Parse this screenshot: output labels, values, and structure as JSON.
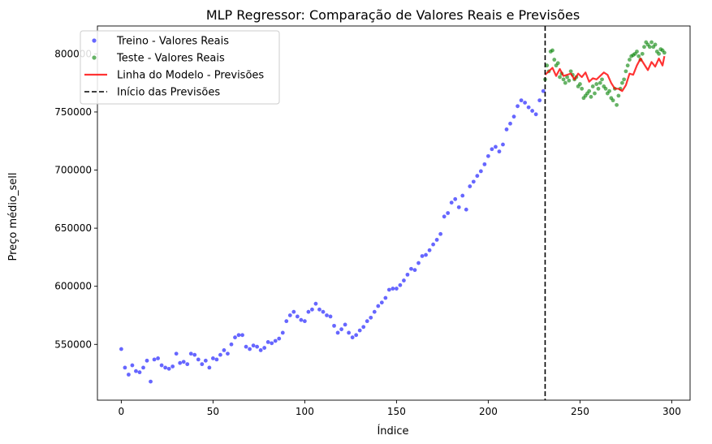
{
  "chart_data": {
    "type": "scatter",
    "title": "MLP Regressor: Comparação de Valores Reais e Previsões",
    "xlabel": "Índice",
    "ylabel": "Preço médio_sell",
    "xlim": [
      -13,
      310
    ],
    "ylim": [
      502000,
      824000
    ],
    "xticks": [
      0,
      50,
      100,
      150,
      200,
      250,
      300
    ],
    "xtick_labels": [
      "0",
      "50",
      "100",
      "150",
      "200",
      "250",
      "300"
    ],
    "yticks": [
      550000,
      600000,
      650000,
      700000,
      750000,
      800000
    ],
    "ytick_labels": [
      "550000",
      "600000",
      "650000",
      "700000",
      "750000",
      "800000"
    ],
    "grid": false,
    "legend_position": "top-left",
    "vline": {
      "x": 231,
      "color": "#000000",
      "style": "dashed"
    },
    "series": [
      {
        "name": "Treino - Valores Reais",
        "kind": "scatter",
        "color": "#0000ff",
        "x": [
          0,
          2,
          4,
          6,
          8,
          10,
          12,
          14,
          16,
          18,
          20,
          22,
          24,
          26,
          28,
          30,
          32,
          34,
          36,
          38,
          40,
          42,
          44,
          46,
          48,
          50,
          52,
          54,
          56,
          58,
          60,
          62,
          64,
          66,
          68,
          70,
          72,
          74,
          76,
          78,
          80,
          82,
          84,
          86,
          88,
          90,
          92,
          94,
          96,
          98,
          100,
          102,
          104,
          106,
          108,
          110,
          112,
          114,
          116,
          118,
          120,
          122,
          124,
          126,
          128,
          130,
          132,
          134,
          136,
          138,
          140,
          142,
          144,
          146,
          148,
          150,
          152,
          154,
          156,
          158,
          160,
          162,
          164,
          166,
          168,
          170,
          172,
          174,
          176,
          178,
          180,
          182,
          184,
          186,
          188,
          190,
          192,
          194,
          196,
          198,
          200,
          202,
          204,
          206,
          208,
          210,
          212,
          214,
          216,
          218,
          220,
          222,
          224,
          226,
          228,
          230
        ],
        "y": [
          546000,
          530000,
          524000,
          532000,
          527000,
          526000,
          530000,
          536000,
          518000,
          537000,
          538000,
          532000,
          530000,
          529000,
          531000,
          542000,
          534000,
          535000,
          533000,
          542000,
          541000,
          537000,
          533000,
          536000,
          530000,
          538000,
          537000,
          541000,
          545000,
          542000,
          550000,
          556000,
          558000,
          558000,
          548000,
          546000,
          549000,
          548000,
          545000,
          547000,
          552000,
          551000,
          553000,
          555000,
          560000,
          570000,
          575000,
          578000,
          574000,
          571000,
          570000,
          578000,
          580000,
          585000,
          580000,
          578000,
          575000,
          574000,
          566000,
          560000,
          563000,
          567000,
          560000,
          556000,
          558000,
          562000,
          565000,
          570000,
          573000,
          578000,
          583000,
          586000,
          590000,
          597000,
          598000,
          598000,
          601000,
          605000,
          610000,
          615000,
          614000,
          620000,
          626000,
          627000,
          631000,
          636000,
          640000,
          645000,
          660000,
          663000,
          672000,
          675000,
          668000,
          678000,
          666000,
          686000,
          690000,
          695000,
          699000,
          705000,
          712000,
          718000,
          720000,
          716000,
          722000,
          735000,
          740000,
          746000,
          755000,
          760000,
          758000,
          754000,
          751000,
          748000,
          760000,
          768000
        ]
      },
      {
        "name": "Teste - Valores Reais",
        "kind": "scatter",
        "color": "#008000",
        "x": [
          231,
          232,
          233,
          234,
          235,
          236,
          237,
          238,
          239,
          240,
          241,
          242,
          243,
          244,
          245,
          246,
          247,
          248,
          249,
          250,
          251,
          252,
          253,
          254,
          255,
          256,
          257,
          258,
          259,
          260,
          261,
          262,
          263,
          264,
          265,
          266,
          267,
          268,
          269,
          270,
          271,
          272,
          273,
          274,
          275,
          276,
          277,
          278,
          279,
          280,
          281,
          282,
          283,
          284,
          285,
          286,
          287,
          288,
          289,
          290,
          291,
          292,
          293,
          294,
          295,
          296
        ],
        "y": [
          778000,
          790000,
          785000,
          802000,
          803000,
          795000,
          790000,
          792000,
          780000,
          783000,
          778000,
          775000,
          780000,
          777000,
          785000,
          782000,
          778000,
          780000,
          772000,
          774000,
          770000,
          762000,
          764000,
          766000,
          768000,
          763000,
          772000,
          766000,
          774000,
          770000,
          775000,
          778000,
          772000,
          770000,
          766000,
          768000,
          762000,
          760000,
          770000,
          756000,
          764000,
          770000,
          775000,
          778000,
          785000,
          790000,
          795000,
          798000,
          799000,
          800000,
          802000,
          798000,
          795000,
          800000,
          806000,
          810000,
          808000,
          806000,
          810000,
          806000,
          808000,
          802000,
          800000,
          804000,
          803000,
          801000
        ]
      },
      {
        "name": "Linha do Modelo - Previsões",
        "kind": "line",
        "color": "#ff0000",
        "x": [
          231,
          233,
          235,
          237,
          239,
          241,
          243,
          245,
          247,
          249,
          251,
          253,
          255,
          257,
          259,
          261,
          263,
          265,
          267,
          269,
          271,
          273,
          275,
          277,
          279,
          281,
          283,
          285,
          287,
          289,
          291,
          293,
          295,
          296
        ],
        "y": [
          782000,
          785000,
          788000,
          781000,
          787000,
          781000,
          782000,
          783000,
          778000,
          783000,
          780000,
          784000,
          776000,
          779000,
          778000,
          781000,
          784000,
          782000,
          775000,
          770000,
          770000,
          768000,
          773000,
          783000,
          782000,
          790000,
          796000,
          791000,
          786000,
          793000,
          789000,
          796000,
          790000,
          798000
        ]
      }
    ],
    "legend_entries": [
      {
        "label": "Treino - Valores Reais",
        "marker": "dot",
        "color": "#0000ff"
      },
      {
        "label": "Teste - Valores Reais",
        "marker": "dot",
        "color": "#008000"
      },
      {
        "label": "Linha do Modelo - Previsões",
        "marker": "line",
        "color": "#ff0000"
      },
      {
        "label": "Início das Previsões",
        "marker": "dashed",
        "color": "#000000"
      }
    ]
  }
}
